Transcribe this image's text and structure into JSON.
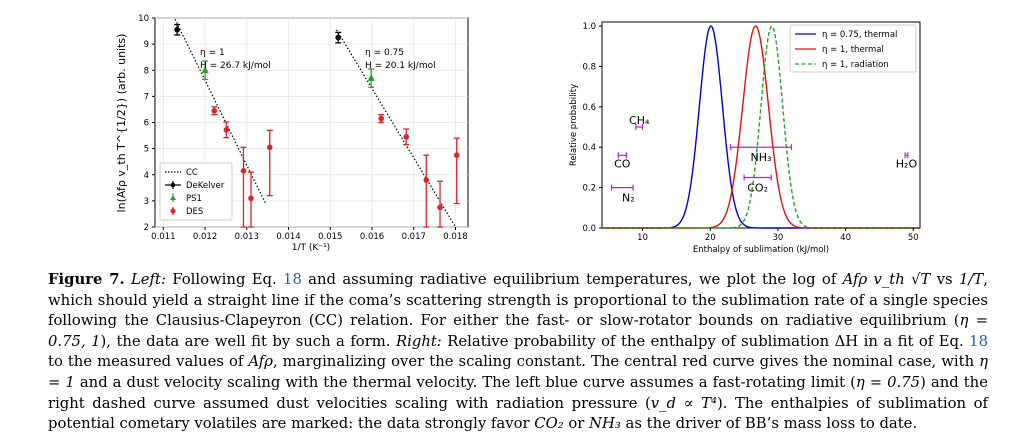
{
  "chart_data": [
    {
      "type": "scatter",
      "xlabel": "1/T (K⁻¹)",
      "ylabel": "ln(Afρ v_th T^{1/2}) (arb. units)",
      "xlim": [
        0.0108,
        0.0183
      ],
      "ylim": [
        2,
        10
      ],
      "xticks": [
        "0.011",
        "0.012",
        "0.013",
        "0.014",
        "0.015",
        "0.016",
        "0.017",
        "0.018"
      ],
      "yticks": [
        "2",
        "3",
        "4",
        "5",
        "6",
        "7",
        "8",
        "9",
        "10"
      ],
      "grid": true,
      "legend_position": "lower-left",
      "legend": [
        "CC",
        "DeKelver",
        "PS1",
        "DES"
      ],
      "annotations": [
        {
          "eta": "η = 1",
          "H": "H = 26.7 kJ/mol"
        },
        {
          "eta": "η = 0.75",
          "H": "H = 20.1 kJ/mol"
        }
      ],
      "fit_lines": [
        {
          "name": "CC η=1",
          "x": [
            0.01128,
            0.01345
          ],
          "y": [
            9.95,
            2.9
          ]
        },
        {
          "name": "CC η=0.75",
          "x": [
            0.01515,
            0.018
          ],
          "y": [
            9.55,
            2.0
          ]
        }
      ],
      "series": [
        {
          "name": "DeKelver",
          "color": "#000000",
          "marker": "circle",
          "points": [
            {
              "x": 0.01133,
              "y": 9.55,
              "err": 0.2
            },
            {
              "x": 0.01519,
              "y": 9.25,
              "err": 0.2
            }
          ]
        },
        {
          "name": "PS1",
          "color": "#2ca02c",
          "marker": "triangle",
          "points": [
            {
              "x": 0.012,
              "y": 8.0,
              "err": 0.35
            },
            {
              "x": 0.01598,
              "y": 7.7,
              "err": 0.35
            }
          ]
        },
        {
          "name": "DES",
          "color": "#d62728",
          "marker": "circle",
          "points": [
            {
              "x": 0.01222,
              "y": 6.45,
              "err": 0.15
            },
            {
              "x": 0.01251,
              "y": 5.72,
              "err": 0.3
            },
            {
              "x": 0.01292,
              "y": 4.15,
              "lo": 2.0,
              "hi": 5.05
            },
            {
              "x": 0.0131,
              "y": 3.1,
              "lo": 2.0,
              "hi": 4.1
            },
            {
              "x": 0.01355,
              "y": 5.05,
              "lo": 3.2,
              "hi": 5.7
            },
            {
              "x": 0.01622,
              "y": 6.15,
              "err": 0.15
            },
            {
              "x": 0.01682,
              "y": 5.45,
              "err": 0.3
            },
            {
              "x": 0.0173,
              "y": 3.8,
              "lo": 2.0,
              "hi": 4.75
            },
            {
              "x": 0.01763,
              "y": 2.75,
              "lo": 2.0,
              "hi": 3.75
            },
            {
              "x": 0.01803,
              "y": 4.75,
              "lo": 2.9,
              "hi": 5.4
            }
          ]
        }
      ]
    },
    {
      "type": "line",
      "xlabel": "Enthalpy of sublimation (kJ/mol)",
      "ylabel": "Relative probability",
      "xlim": [
        4,
        51
      ],
      "ylim": [
        0,
        1.02
      ],
      "xticks": [
        "10",
        "20",
        "30",
        "40",
        "50"
      ],
      "yticks": [
        "0.0",
        "0.2",
        "0.4",
        "0.6",
        "0.8",
        "1.0"
      ],
      "legend_position": "top-right",
      "series": [
        {
          "name": "η = 0.75, thermal",
          "color": "#0000cc",
          "style": "solid",
          "peak": 20.1,
          "sigma": 1.7
        },
        {
          "name": "η = 1, thermal",
          "color": "#dd1111",
          "style": "solid",
          "peak": 26.7,
          "sigma": 1.9
        },
        {
          "name": "η = 1, radiation",
          "color": "#22a022",
          "style": "dashed",
          "peak": 29.1,
          "sigma": 1.6
        }
      ],
      "markers": [
        {
          "label": "N₂",
          "x": 7.0,
          "lo": 5.4,
          "hi": 8.6,
          "y": 0.2
        },
        {
          "label": "CO",
          "x": 7.0,
          "lo": 6.4,
          "hi": 7.6,
          "y": 0.36
        },
        {
          "label": "CH₄",
          "x": 9.5,
          "lo": 9.0,
          "hi": 10.0,
          "y": 0.5
        },
        {
          "label": "NH₃",
          "x": 27.5,
          "lo": 23.0,
          "hi": 32.0,
          "y": 0.4
        },
        {
          "label": "CO₂",
          "x": 27.0,
          "lo": 25.0,
          "hi": 29.0,
          "y": 0.25
        },
        {
          "label": "H₂O",
          "x": 49.0,
          "lo": 48.8,
          "hi": 49.2,
          "y": 0.36
        }
      ]
    }
  ],
  "caption": {
    "label": "Figure 7.",
    "left_word": "Left:",
    "right_word": "Right:",
    "eq_ref": "18",
    "text1": " Following Eq. ",
    "text2": " and assuming radiative equilibrium temperatures, we plot the log of ",
    "math1": "Afρ v_th √T",
    "text3": " vs ",
    "math2": "1/T",
    "text4": ", which should yield a straight line if the coma’s scattering strength is proportional to the sublimation rate of a single species following the Clausius-Clapeyron (CC) relation. For either the fast- or slow-rotator bounds on radiative equilibrium (",
    "math3": "η = 0.75, 1",
    "text5": "), the data are well fit by such a form. ",
    "text6": " Relative probability of the enthalpy of sublimation ΔH in a fit of Eq. ",
    "text7": " to the measured values of ",
    "math4": "Afρ",
    "text8": ", marginalizing over the scaling constant. The central red curve gives the nominal case, with ",
    "math5": "η = 1",
    "text9": " and a dust velocity scaling with the thermal velocity. The left blue curve assumes a fast-rotating limit (",
    "math6": "η = 0.75",
    "text10": ") and the right dashed curve assumed dust velocities scaling with radiation pressure (",
    "math7": "v_d ∝ T⁴",
    "text11": "). The enthalpies of sublimation of potential cometary volatiles are marked: the data strongly favor ",
    "math8": "CO₂",
    "text12": " or ",
    "math9": "NH₃",
    "text13": " as the driver of BB’s mass loss to date."
  }
}
